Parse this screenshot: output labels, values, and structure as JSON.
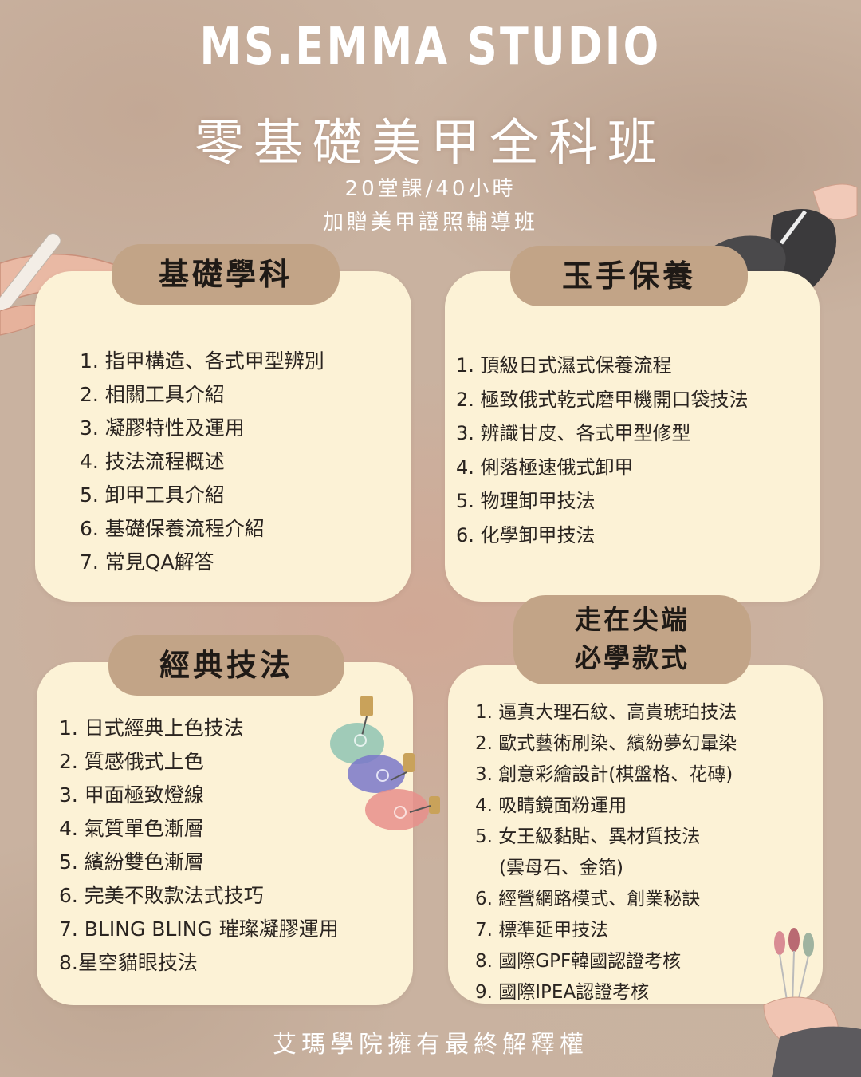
{
  "header": {
    "studio": "MS.EMMA STUDIO",
    "course": "零基礎美甲全科班",
    "hours": "20堂課/40小時",
    "bonus": "加贈美甲證照輔導班"
  },
  "sections": {
    "basic": {
      "title": "基礎學科",
      "items": [
        "1. 指甲構造、各式甲型辨別",
        "2. 相關工具介紹",
        "3. 凝膠特性及運用",
        "4. 技法流程概述",
        "5. 卸甲工具介紹",
        "6. 基礎保養流程介紹",
        "7. 常見QA解答"
      ]
    },
    "hand": {
      "title": "玉手保養",
      "items": [
        "1. 頂級日式濕式保養流程",
        "2. 極致俄式乾式磨甲機開口袋技法",
        "3. 辨識甘皮、各式甲型修型",
        "4. 俐落極速俄式卸甲",
        "5. 物理卸甲技法",
        "6. 化學卸甲技法"
      ]
    },
    "classic": {
      "title": "經典技法",
      "items": [
        "1. 日式經典上色技法",
        "2. 質感俄式上色",
        "3. 甲面極致燈線",
        "4. 氣質單色漸層",
        "5. 繽紛雙色漸層",
        "6. 完美不敗款法式技巧",
        "7. BLING BLING 璀璨凝膠運用",
        "8.星空貓眼技法"
      ]
    },
    "trend": {
      "title_line1": "走在尖端",
      "title_line2": "必學款式",
      "items": [
        "1. 逼真大理石紋、高貴琥珀技法",
        "2. 歐式藝術刷染、繽紛夢幻暈染",
        "3. 創意彩繪設計(棋盤格、花磚)",
        "4. 吸睛鏡面粉運用",
        "5. 女王級黏貼、異材質技法",
        "(雲母石、金箔)",
        "6. 經營網路模式、創業秘訣",
        "7. 標準延甲技法",
        "8. 國際GPF韓國認證考核",
        "9. 國際IPEA認證考核"
      ]
    }
  },
  "footer": "艾瑪學院擁有最終解釋權",
  "colors": {
    "card": "#fcf2d6",
    "tab": "#c2a487",
    "background": "#c9b2a0"
  },
  "decorations": [
    "nail-file-hand-illustration",
    "gloved-hands-illustration",
    "gel-bottle-illustration",
    "nail-swatch-hand-illustration"
  ]
}
